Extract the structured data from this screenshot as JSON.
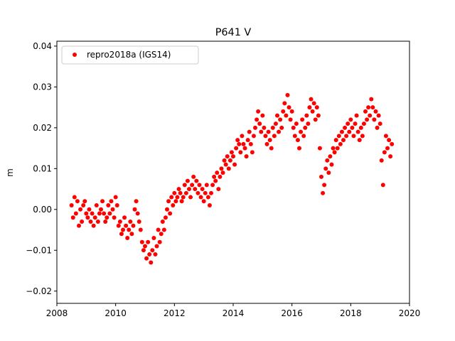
{
  "chart_data": {
    "type": "scatter",
    "title": "P641 V",
    "xlabel": "",
    "ylabel": "m",
    "xlim": [
      2008,
      2020
    ],
    "ylim": [
      -0.023,
      0.0412
    ],
    "x_ticks": [
      2008,
      2010,
      2012,
      2014,
      2016,
      2018,
      2020
    ],
    "x_tick_labels": [
      "2008",
      "2010",
      "2012",
      "2014",
      "2016",
      "2018",
      "2020"
    ],
    "y_ticks": [
      -0.02,
      -0.01,
      0.0,
      0.01,
      0.02,
      0.03,
      0.04
    ],
    "y_tick_labels": [
      "−0.02",
      "−0.01",
      "0.00",
      "0.01",
      "0.02",
      "0.03",
      "0.04"
    ],
    "grid": false,
    "legend": {
      "placement": "top-left",
      "entries": [
        "repro2018a (IGS14)"
      ]
    },
    "series": [
      {
        "name": "repro2018a (IGS14)",
        "color": "#ff0000",
        "marker": "circle",
        "x": [
          2008.5,
          2008.55,
          2008.6,
          2008.65,
          2008.7,
          2008.75,
          2008.8,
          2008.85,
          2008.9,
          2008.95,
          2009.0,
          2009.05,
          2009.1,
          2009.15,
          2009.2,
          2009.25,
          2009.3,
          2009.35,
          2009.4,
          2009.45,
          2009.5,
          2009.55,
          2009.6,
          2009.65,
          2009.7,
          2009.75,
          2009.8,
          2009.85,
          2009.9,
          2009.95,
          2010.0,
          2010.05,
          2010.1,
          2010.15,
          2010.2,
          2010.25,
          2010.3,
          2010.35,
          2010.4,
          2010.45,
          2010.5,
          2010.55,
          2010.6,
          2010.65,
          2010.7,
          2010.75,
          2010.8,
          2010.85,
          2010.9,
          2010.95,
          2011.0,
          2011.05,
          2011.1,
          2011.15,
          2011.2,
          2011.25,
          2011.3,
          2011.35,
          2011.4,
          2011.45,
          2011.5,
          2011.55,
          2011.6,
          2011.65,
          2011.7,
          2011.75,
          2011.8,
          2011.85,
          2011.9,
          2011.95,
          2012.0,
          2012.05,
          2012.1,
          2012.15,
          2012.2,
          2012.25,
          2012.3,
          2012.35,
          2012.4,
          2012.45,
          2012.5,
          2012.55,
          2012.6,
          2012.65,
          2012.7,
          2012.75,
          2012.8,
          2012.85,
          2012.9,
          2012.95,
          2013.0,
          2013.05,
          2013.1,
          2013.15,
          2013.2,
          2013.25,
          2013.3,
          2013.35,
          2013.4,
          2013.45,
          2013.5,
          2013.55,
          2013.6,
          2013.65,
          2013.7,
          2013.75,
          2013.8,
          2013.85,
          2013.9,
          2013.95,
          2014.0,
          2014.05,
          2014.1,
          2014.15,
          2014.2,
          2014.25,
          2014.3,
          2014.35,
          2014.4,
          2014.45,
          2014.5,
          2014.55,
          2014.6,
          2014.65,
          2014.7,
          2014.75,
          2014.8,
          2014.85,
          2014.9,
          2014.95,
          2015.0,
          2015.05,
          2015.1,
          2015.15,
          2015.2,
          2015.25,
          2015.3,
          2015.35,
          2015.4,
          2015.45,
          2015.5,
          2015.55,
          2015.6,
          2015.65,
          2015.7,
          2015.75,
          2015.8,
          2015.85,
          2015.9,
          2015.95,
          2016.0,
          2016.05,
          2016.1,
          2016.15,
          2016.2,
          2016.25,
          2016.3,
          2016.35,
          2016.4,
          2016.45,
          2016.5,
          2016.55,
          2016.6,
          2016.65,
          2016.7,
          2016.75,
          2016.8,
          2016.85,
          2016.9,
          2016.95,
          2017.0,
          2017.05,
          2017.1,
          2017.15,
          2017.2,
          2017.25,
          2017.3,
          2017.35,
          2017.4,
          2017.45,
          2017.5,
          2017.55,
          2017.6,
          2017.65,
          2017.7,
          2017.75,
          2017.8,
          2017.85,
          2017.9,
          2017.95,
          2018.0,
          2018.05,
          2018.1,
          2018.15,
          2018.2,
          2018.25,
          2018.3,
          2018.35,
          2018.4,
          2018.45,
          2018.5,
          2018.55,
          2018.6,
          2018.65,
          2018.7,
          2018.75,
          2018.8,
          2018.85,
          2018.9,
          2018.95,
          2019.0,
          2019.05,
          2019.1,
          2019.15,
          2019.2,
          2019.25,
          2019.3,
          2019.35,
          2019.4
        ],
        "y": [
          0.001,
          -0.002,
          0.003,
          -0.001,
          0.002,
          -0.004,
          0.0,
          -0.003,
          0.001,
          0.002,
          -0.001,
          -0.002,
          0.0,
          -0.003,
          -0.001,
          -0.004,
          -0.002,
          0.001,
          -0.003,
          -0.001,
          0.0,
          0.002,
          -0.001,
          -0.003,
          -0.002,
          0.001,
          -0.001,
          0.002,
          0.0,
          -0.002,
          0.003,
          0.001,
          -0.004,
          -0.003,
          -0.006,
          -0.005,
          -0.002,
          -0.004,
          -0.007,
          -0.005,
          -0.003,
          -0.006,
          -0.004,
          0.0,
          0.002,
          -0.001,
          -0.003,
          -0.005,
          -0.008,
          -0.01,
          -0.009,
          -0.012,
          -0.008,
          -0.011,
          -0.013,
          -0.01,
          -0.007,
          -0.011,
          -0.009,
          -0.005,
          -0.008,
          -0.006,
          -0.003,
          -0.005,
          -0.002,
          0.0,
          0.002,
          -0.001,
          0.003,
          0.001,
          0.004,
          0.002,
          0.003,
          0.005,
          0.004,
          0.002,
          0.003,
          0.006,
          0.004,
          0.007,
          0.005,
          0.003,
          0.006,
          0.008,
          0.005,
          0.007,
          0.004,
          0.006,
          0.003,
          0.005,
          0.002,
          0.004,
          0.006,
          0.003,
          0.001,
          0.004,
          0.006,
          0.008,
          0.007,
          0.009,
          0.005,
          0.008,
          0.01,
          0.009,
          0.012,
          0.011,
          0.013,
          0.01,
          0.012,
          0.014,
          0.013,
          0.011,
          0.015,
          0.017,
          0.016,
          0.014,
          0.018,
          0.016,
          0.015,
          0.013,
          0.017,
          0.019,
          0.016,
          0.014,
          0.018,
          0.02,
          0.022,
          0.024,
          0.021,
          0.019,
          0.023,
          0.02,
          0.018,
          0.016,
          0.019,
          0.017,
          0.015,
          0.02,
          0.018,
          0.021,
          0.023,
          0.019,
          0.022,
          0.02,
          0.024,
          0.026,
          0.023,
          0.028,
          0.025,
          0.022,
          0.024,
          0.02,
          0.018,
          0.021,
          0.017,
          0.015,
          0.019,
          0.022,
          0.018,
          0.02,
          0.023,
          0.021,
          0.025,
          0.027,
          0.024,
          0.026,
          0.022,
          0.025,
          0.023,
          0.015,
          0.008,
          0.004,
          0.006,
          0.01,
          0.012,
          0.009,
          0.013,
          0.011,
          0.015,
          0.014,
          0.017,
          0.015,
          0.018,
          0.016,
          0.019,
          0.017,
          0.02,
          0.018,
          0.021,
          0.019,
          0.022,
          0.02,
          0.018,
          0.021,
          0.023,
          0.019,
          0.017,
          0.02,
          0.018,
          0.021,
          0.024,
          0.022,
          0.025,
          0.023,
          0.027,
          0.025,
          0.022,
          0.024,
          0.02,
          0.023,
          0.021,
          0.012,
          0.006,
          0.014,
          0.018,
          0.015,
          0.017,
          0.013,
          0.016
        ]
      }
    ]
  }
}
